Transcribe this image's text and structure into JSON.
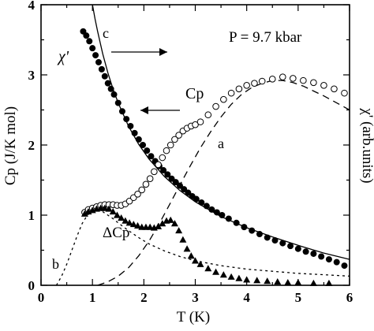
{
  "chart_data": {
    "type": "scatter",
    "title": "",
    "xlabel": "T (K)",
    "ylabel_left": "Cp (J/K mol)",
    "ylabel_right": "χ' (arb.units)",
    "xlim": [
      0,
      6
    ],
    "ylim": [
      0,
      4
    ],
    "x_ticks": [
      "0",
      "1",
      "2",
      "3",
      "4",
      "5",
      "6"
    ],
    "y_ticks": [
      "0",
      "1",
      "2",
      "3",
      "4"
    ],
    "grid": false,
    "annotations": {
      "pressure": "P = 9.7 kbar",
      "chi_label": "χ'",
      "cp_label": "Cp",
      "dcp_label": "ΔCp",
      "curve_a": "a",
      "curve_b": "b",
      "curve_c": "c"
    },
    "series": [
      {
        "marker": "filled-circle",
        "x": [
          0.82,
          0.88,
          0.94,
          1.0,
          1.06,
          1.12,
          1.18,
          1.24,
          1.3,
          1.36,
          1.42,
          1.5,
          1.58,
          1.66,
          1.74,
          1.82,
          1.9,
          1.98,
          2.06,
          2.14,
          2.22,
          2.3,
          2.38,
          2.46,
          2.54,
          2.62,
          2.7,
          2.78,
          2.86,
          2.94,
          3.02,
          3.12,
          3.22,
          3.32,
          3.42,
          3.52,
          3.65,
          3.8,
          3.95,
          4.1,
          4.25,
          4.4,
          4.55,
          4.7,
          4.85,
          5.0,
          5.15,
          5.3,
          5.45,
          5.6,
          5.75,
          5.9
        ],
        "y": [
          3.62,
          3.56,
          3.48,
          3.38,
          3.28,
          3.18,
          3.08,
          2.98,
          2.88,
          2.8,
          2.72,
          2.6,
          2.48,
          2.37,
          2.27,
          2.17,
          2.08,
          2.0,
          1.92,
          1.84,
          1.77,
          1.7,
          1.64,
          1.58,
          1.52,
          1.47,
          1.42,
          1.37,
          1.32,
          1.27,
          1.23,
          1.18,
          1.13,
          1.08,
          1.04,
          1.0,
          0.95,
          0.89,
          0.83,
          0.78,
          0.73,
          0.68,
          0.64,
          0.6,
          0.56,
          0.52,
          0.48,
          0.45,
          0.41,
          0.37,
          0.33,
          0.28
        ]
      },
      {
        "marker": "open-circle",
        "x": [
          0.85,
          0.92,
          1.0,
          1.08,
          1.16,
          1.24,
          1.32,
          1.4,
          1.48,
          1.56,
          1.64,
          1.72,
          1.8,
          1.88,
          1.96,
          2.04,
          2.12,
          2.2,
          2.28,
          2.36,
          2.44,
          2.52,
          2.6,
          2.68,
          2.76,
          2.84,
          2.92,
          3.0,
          3.1,
          3.25,
          3.4,
          3.55,
          3.7,
          3.85,
          4.0,
          4.15,
          4.3,
          4.5,
          4.7,
          4.9,
          5.1,
          5.3,
          5.5,
          5.7,
          5.9
        ],
        "y": [
          1.04,
          1.08,
          1.1,
          1.12,
          1.14,
          1.15,
          1.15,
          1.15,
          1.14,
          1.14,
          1.16,
          1.2,
          1.25,
          1.3,
          1.36,
          1.44,
          1.52,
          1.62,
          1.72,
          1.82,
          1.92,
          2.0,
          2.08,
          2.14,
          2.2,
          2.24,
          2.27,
          2.29,
          2.33,
          2.43,
          2.55,
          2.65,
          2.74,
          2.8,
          2.85,
          2.88,
          2.91,
          2.94,
          2.97,
          2.95,
          2.92,
          2.89,
          2.85,
          2.8,
          2.74
        ]
      },
      {
        "marker": "filled-triangle",
        "x": [
          0.85,
          0.92,
          1.0,
          1.08,
          1.16,
          1.24,
          1.32,
          1.4,
          1.48,
          1.56,
          1.64,
          1.72,
          1.8,
          1.88,
          1.96,
          2.04,
          2.12,
          2.2,
          2.28,
          2.36,
          2.44,
          2.52,
          2.6,
          2.68,
          2.76,
          2.84,
          2.92,
          3.0,
          3.1,
          3.25,
          3.4,
          3.55,
          3.7,
          3.85,
          4.0,
          4.2,
          4.4,
          4.6,
          4.8,
          5.0,
          5.3,
          5.6
        ],
        "y": [
          1.02,
          1.05,
          1.07,
          1.09,
          1.1,
          1.1,
          1.09,
          1.05,
          1.0,
          0.96,
          0.92,
          0.89,
          0.87,
          0.85,
          0.83,
          0.83,
          0.83,
          0.82,
          0.84,
          0.88,
          0.92,
          0.93,
          0.88,
          0.78,
          0.65,
          0.52,
          0.42,
          0.35,
          0.3,
          0.24,
          0.19,
          0.15,
          0.12,
          0.1,
          0.08,
          0.07,
          0.06,
          0.05,
          0.04,
          0.04,
          0.03,
          0.03
        ]
      }
    ],
    "curves": {
      "a": {
        "style": "dashed",
        "x": [
          1.1,
          1.3,
          1.5,
          1.7,
          1.9,
          2.1,
          2.3,
          2.5,
          2.7,
          2.9,
          3.1,
          3.3,
          3.5,
          3.7,
          3.9,
          4.1,
          4.3,
          4.5,
          4.7,
          4.9,
          5.1,
          5.3,
          5.5,
          5.7,
          5.9,
          6.0
        ],
        "y": [
          0.0,
          0.05,
          0.13,
          0.25,
          0.42,
          0.63,
          0.88,
          1.15,
          1.43,
          1.7,
          1.96,
          2.19,
          2.4,
          2.58,
          2.72,
          2.82,
          2.88,
          2.92,
          2.92,
          2.89,
          2.84,
          2.77,
          2.7,
          2.62,
          2.54,
          2.5
        ]
      },
      "b": {
        "style": "dotted",
        "x": [
          0.3,
          0.4,
          0.5,
          0.6,
          0.7,
          0.8,
          0.9,
          1.0,
          1.1,
          1.2,
          1.3,
          1.4,
          1.5,
          1.7,
          1.9,
          2.1,
          2.4,
          2.7,
          3.0,
          3.5,
          4.0,
          4.5,
          5.0,
          5.5,
          6.0
        ],
        "y": [
          0.0,
          0.13,
          0.3,
          0.5,
          0.7,
          0.88,
          1.0,
          1.06,
          1.07,
          1.05,
          1.0,
          0.95,
          0.89,
          0.78,
          0.68,
          0.59,
          0.49,
          0.41,
          0.35,
          0.28,
          0.23,
          0.2,
          0.17,
          0.15,
          0.13
        ]
      },
      "c": {
        "style": "solid",
        "x": [
          1.0,
          1.05,
          1.1,
          1.2,
          1.3,
          1.4,
          1.5,
          1.7,
          1.9,
          2.1,
          2.4,
          2.7,
          3.0,
          3.5,
          4.0,
          4.5,
          5.0,
          5.5,
          6.0
        ],
        "y": [
          4.0,
          3.8,
          3.62,
          3.3,
          3.03,
          2.8,
          2.6,
          2.27,
          2.01,
          1.8,
          1.55,
          1.35,
          1.19,
          0.98,
          0.82,
          0.69,
          0.57,
          0.46,
          0.37
        ]
      }
    }
  }
}
